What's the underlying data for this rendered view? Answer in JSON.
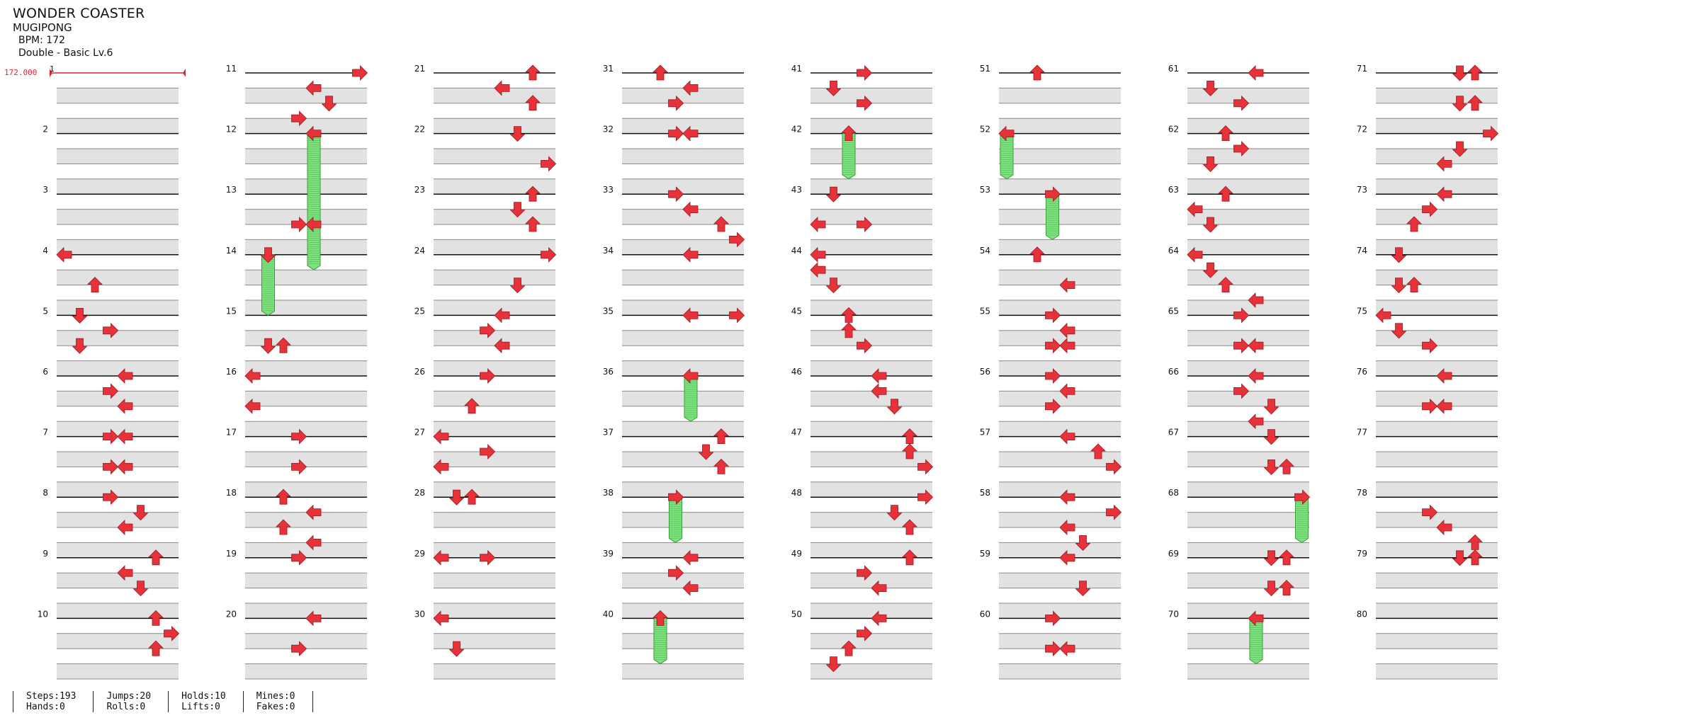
{
  "song": {
    "title": "WONDER COASTER",
    "artist": "MUGIPONG",
    "bpm_text": "BPM: 172",
    "difficulty_text": "Double - Basic  Lv.6"
  },
  "bpm_marker": "172.000",
  "colors": {
    "arrow": "#e8323a",
    "hold": "#7ee07e",
    "bpm": "#e0242a",
    "shade": "#e2e2e2"
  },
  "lanes": [
    "left",
    "down",
    "up",
    "right",
    "left",
    "down",
    "up",
    "right"
  ],
  "measures": {
    "1": [],
    "2": [],
    "3": [],
    "4": [
      [
        0,
        0
      ],
      [
        0.5,
        2
      ]
    ],
    "5": [
      [
        0,
        1
      ],
      [
        0.25,
        3
      ],
      [
        0.5,
        1
      ]
    ],
    "6": [
      [
        0,
        4
      ],
      [
        0.25,
        3
      ],
      [
        0.5,
        4
      ]
    ],
    "7": [
      [
        0,
        3
      ],
      [
        0,
        4
      ],
      [
        0.5,
        3
      ],
      [
        0.5,
        4
      ]
    ],
    "8": [
      [
        0,
        3
      ],
      [
        0.25,
        5
      ],
      [
        0.5,
        4
      ]
    ],
    "9": [
      [
        0,
        6
      ],
      [
        0.25,
        4
      ],
      [
        0.5,
        5
      ]
    ],
    "10": [
      [
        0,
        6
      ],
      [
        0.25,
        7
      ],
      [
        0.5,
        6
      ]
    ],
    "11": [
      [
        0,
        7
      ],
      [
        0.25,
        4
      ],
      [
        0.5,
        5
      ],
      [
        0.75,
        3
      ]
    ],
    "12": [
      [
        0,
        4,
        2.25
      ]
    ],
    "13": [
      [
        0.5,
        3
      ],
      [
        0.5,
        4
      ]
    ],
    "14": [
      [
        0,
        1,
        1.0
      ]
    ],
    "15": [
      [
        0.5,
        1
      ],
      [
        0.5,
        2
      ]
    ],
    "16": [
      [
        0,
        0
      ],
      [
        0.5,
        0
      ]
    ],
    "17": [
      [
        0,
        3
      ],
      [
        0.5,
        3
      ]
    ],
    "18": [
      [
        0,
        2
      ],
      [
        0.25,
        4
      ],
      [
        0.5,
        2
      ],
      [
        0.75,
        4
      ]
    ],
    "19": [
      [
        0,
        3
      ]
    ],
    "20": [
      [
        0,
        4
      ],
      [
        0.5,
        3
      ]
    ],
    "21": [
      [
        0,
        6
      ],
      [
        0.25,
        4
      ],
      [
        0.5,
        6
      ]
    ],
    "22": [
      [
        0,
        5
      ],
      [
        0.5,
        7
      ]
    ],
    "23": [
      [
        0,
        6
      ],
      [
        0.25,
        5
      ],
      [
        0.5,
        6
      ]
    ],
    "24": [
      [
        0,
        7
      ],
      [
        0.5,
        5
      ]
    ],
    "25": [
      [
        0,
        4
      ],
      [
        0.25,
        3
      ],
      [
        0.5,
        4
      ]
    ],
    "26": [
      [
        0,
        3
      ],
      [
        0.5,
        2
      ]
    ],
    "27": [
      [
        0,
        0
      ],
      [
        0.25,
        3
      ],
      [
        0.5,
        0
      ]
    ],
    "28": [
      [
        0,
        1
      ],
      [
        0,
        2
      ]
    ],
    "29": [
      [
        0,
        0
      ],
      [
        0,
        3
      ]
    ],
    "30": [
      [
        0,
        0
      ],
      [
        0.5,
        1
      ]
    ],
    "31": [
      [
        0,
        2
      ],
      [
        0.25,
        4
      ],
      [
        0.5,
        3
      ]
    ],
    "32": [
      [
        0,
        3
      ],
      [
        0,
        4
      ]
    ],
    "33": [
      [
        0,
        3
      ],
      [
        0.25,
        4
      ],
      [
        0.5,
        6
      ],
      [
        0.75,
        7
      ]
    ],
    "34": [
      [
        0,
        4
      ]
    ],
    "35": [
      [
        0,
        4
      ],
      [
        0,
        7
      ]
    ],
    "36": [
      [
        0,
        4,
        0.75
      ]
    ],
    "37": [
      [
        0,
        6
      ],
      [
        0.25,
        5
      ],
      [
        0.5,
        6
      ]
    ],
    "38": [
      [
        0,
        3,
        0.75
      ]
    ],
    "39": [
      [
        0,
        4
      ],
      [
        0.25,
        3
      ],
      [
        0.5,
        4
      ]
    ],
    "40": [
      [
        0,
        2,
        0.75
      ]
    ],
    "41": [
      [
        0,
        3
      ],
      [
        0.25,
        1
      ],
      [
        0.5,
        3
      ]
    ],
    "42": [
      [
        0,
        2,
        0.75
      ]
    ],
    "43": [
      [
        0,
        1
      ],
      [
        0.5,
        0
      ],
      [
        0.5,
        3
      ]
    ],
    "44": [
      [
        0,
        0
      ],
      [
        0.25,
        0
      ],
      [
        0.5,
        1
      ]
    ],
    "45": [
      [
        0,
        2
      ],
      [
        0.25,
        2
      ],
      [
        0.5,
        3
      ]
    ],
    "46": [
      [
        0,
        4
      ],
      [
        0.25,
        4
      ],
      [
        0.5,
        5
      ]
    ],
    "47": [
      [
        0,
        6
      ],
      [
        0.25,
        6
      ],
      [
        0.5,
        7
      ]
    ],
    "48": [
      [
        0,
        7
      ],
      [
        0.25,
        5
      ],
      [
        0.5,
        6
      ]
    ],
    "49": [
      [
        0,
        6
      ],
      [
        0.25,
        3
      ],
      [
        0.5,
        4
      ]
    ],
    "50": [
      [
        0,
        4
      ],
      [
        0.25,
        3
      ],
      [
        0.5,
        2
      ],
      [
        0.75,
        1
      ]
    ],
    "51": [
      [
        0,
        2
      ]
    ],
    "52": [
      [
        0,
        0,
        0.75
      ]
    ],
    "53": [
      [
        0,
        3,
        0.75
      ]
    ],
    "54": [
      [
        0,
        2
      ],
      [
        0.5,
        4
      ]
    ],
    "55": [
      [
        0,
        3
      ],
      [
        0.25,
        4
      ],
      [
        0.5,
        3
      ],
      [
        0.5,
        4
      ]
    ],
    "56": [
      [
        0,
        3
      ],
      [
        0.25,
        4
      ],
      [
        0.5,
        3
      ]
    ],
    "57": [
      [
        0,
        4
      ],
      [
        0.25,
        6
      ],
      [
        0.5,
        7
      ]
    ],
    "58": [
      [
        0,
        4
      ],
      [
        0.25,
        7
      ],
      [
        0.5,
        4
      ],
      [
        0.75,
        5
      ]
    ],
    "59": [
      [
        0,
        4
      ],
      [
        0.5,
        5
      ]
    ],
    "60": [
      [
        0,
        3
      ],
      [
        0.5,
        3
      ],
      [
        0.5,
        4
      ]
    ],
    "61": [
      [
        0,
        4
      ],
      [
        0.25,
        1
      ],
      [
        0.5,
        3
      ]
    ],
    "62": [
      [
        0,
        2
      ],
      [
        0.25,
        3
      ],
      [
        0.5,
        1
      ]
    ],
    "63": [
      [
        0,
        2
      ],
      [
        0.25,
        0
      ],
      [
        0.5,
        1
      ]
    ],
    "64": [
      [
        0,
        0
      ],
      [
        0.25,
        1
      ],
      [
        0.5,
        2
      ],
      [
        0.75,
        4
      ]
    ],
    "65": [
      [
        0,
        3
      ],
      [
        0.5,
        3
      ],
      [
        0.5,
        4
      ]
    ],
    "66": [
      [
        0,
        4
      ],
      [
        0.25,
        3
      ],
      [
        0.5,
        5
      ],
      [
        0.75,
        4
      ]
    ],
    "67": [
      [
        0,
        5
      ],
      [
        0.5,
        5
      ],
      [
        0.5,
        6
      ]
    ],
    "68": [
      [
        0,
        7,
        0.75
      ]
    ],
    "69": [
      [
        0,
        5
      ],
      [
        0,
        6
      ],
      [
        0.5,
        5
      ],
      [
        0.5,
        6
      ]
    ],
    "70": [
      [
        0,
        4,
        0.75
      ]
    ],
    "71": [
      [
        0,
        5
      ],
      [
        0,
        6
      ],
      [
        0.5,
        5
      ],
      [
        0.5,
        6
      ]
    ],
    "72": [
      [
        0,
        7
      ],
      [
        0.25,
        5
      ],
      [
        0.5,
        4
      ]
    ],
    "73": [
      [
        0,
        4
      ],
      [
        0.25,
        3
      ],
      [
        0.5,
        2
      ]
    ],
    "74": [
      [
        0,
        1
      ],
      [
        0.5,
        1
      ],
      [
        0.5,
        2
      ]
    ],
    "75": [
      [
        0,
        0
      ],
      [
        0.25,
        1
      ],
      [
        0.5,
        3
      ]
    ],
    "76": [
      [
        0,
        4
      ],
      [
        0.5,
        3
      ],
      [
        0.5,
        4
      ]
    ],
    "77": [],
    "78": [
      [
        0.25,
        3
      ],
      [
        0.5,
        4
      ],
      [
        0.75,
        6
      ]
    ],
    "79": [
      [
        0,
        5
      ],
      [
        0,
        6
      ]
    ],
    "80": []
  },
  "stats": [
    {
      "a": "Steps:193",
      "b": "Hands:0"
    },
    {
      "a": "Jumps:20",
      "b": "Rolls:0"
    },
    {
      "a": "Holds:10",
      "b": "Lifts:0"
    },
    {
      "a": "Mines:0",
      "b": "Fakes:0"
    }
  ]
}
